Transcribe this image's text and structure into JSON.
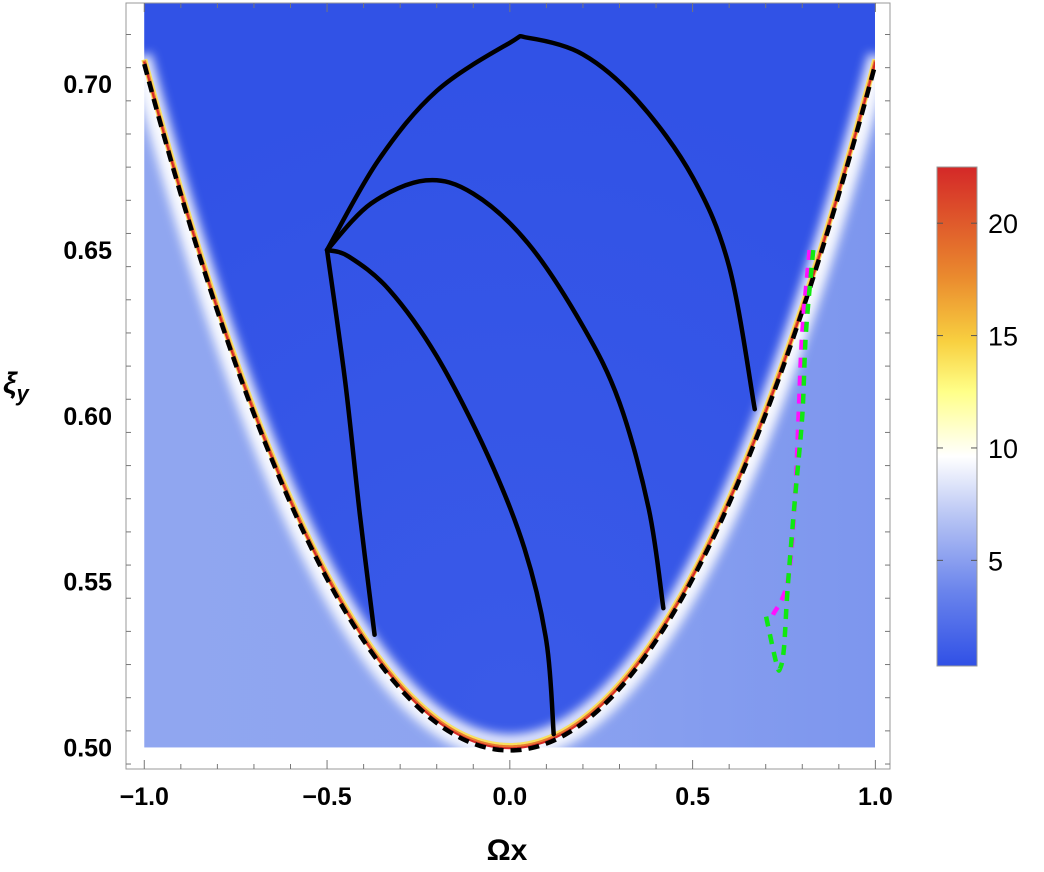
{
  "chart_data": {
    "type": "heatmap",
    "title": "",
    "xlabel": "Ωx",
    "ylabel_main": "ξ",
    "ylabel_sub": "y",
    "xlim": [
      -1.05,
      1.04
    ],
    "ylim": [
      0.4935,
      0.7245
    ],
    "data_extent": {
      "x": [
        -1.0,
        1.0
      ],
      "y": [
        0.5,
        0.725
      ]
    },
    "x_ticks": [
      {
        "value": -1.0,
        "label": "−1.0"
      },
      {
        "value": -0.5,
        "label": "−0.5"
      },
      {
        "value": 0.0,
        "label": "0.0"
      },
      {
        "value": 0.5,
        "label": "0.5"
      },
      {
        "value": 1.0,
        "label": "1.0"
      }
    ],
    "y_ticks": [
      {
        "value": 0.5,
        "label": "0.50"
      },
      {
        "value": 0.55,
        "label": "0.55"
      },
      {
        "value": 0.6,
        "label": "0.60"
      },
      {
        "value": 0.65,
        "label": "0.65"
      },
      {
        "value": 0.7,
        "label": "0.70"
      }
    ],
    "colorbar": {
      "range": [
        0.3,
        22.5
      ],
      "ticks": [
        {
          "value": 5,
          "label": "5"
        },
        {
          "value": 10,
          "label": "10"
        },
        {
          "value": 15,
          "label": "15"
        },
        {
          "value": 20,
          "label": "20"
        }
      ],
      "colors": [
        "#3050e6",
        "#5a78ea",
        "#9db0f0",
        "#ffffff",
        "#ffff55",
        "#f5b030",
        "#e86a2a",
        "#d42828"
      ]
    },
    "parabola": {
      "description": "boundary ξy = 0.5 + 0.207·Ωx²",
      "a": 0.207,
      "b": 0.5
    },
    "series": [
      {
        "name": "curve-1",
        "style": "solid",
        "color": "#000000",
        "points": [
          [
            -0.5,
            0.65
          ],
          [
            -0.36,
            0.677
          ],
          [
            -0.2,
            0.698
          ],
          [
            0.0,
            0.7125
          ],
          [
            0.05,
            0.714
          ],
          [
            0.2,
            0.709
          ],
          [
            0.35,
            0.695
          ],
          [
            0.5,
            0.672
          ],
          [
            0.6,
            0.645
          ],
          [
            0.67,
            0.602
          ]
        ]
      },
      {
        "name": "curve-2",
        "style": "solid",
        "color": "#000000",
        "points": [
          [
            -0.5,
            0.65
          ],
          [
            -0.38,
            0.664
          ],
          [
            -0.23,
            0.671
          ],
          [
            -0.1,
            0.667
          ],
          [
            0.05,
            0.652
          ],
          [
            0.2,
            0.627
          ],
          [
            0.3,
            0.604
          ],
          [
            0.38,
            0.572
          ],
          [
            0.42,
            0.542
          ]
        ]
      },
      {
        "name": "curve-3",
        "style": "solid",
        "color": "#000000",
        "points": [
          [
            -0.5,
            0.65
          ],
          [
            -0.44,
            0.648
          ],
          [
            -0.33,
            0.638
          ],
          [
            -0.2,
            0.618
          ],
          [
            -0.06,
            0.588
          ],
          [
            0.04,
            0.56
          ],
          [
            0.1,
            0.532
          ],
          [
            0.12,
            0.504
          ]
        ]
      },
      {
        "name": "curve-4",
        "style": "solid",
        "color": "#000000",
        "points": [
          [
            -0.5,
            0.65
          ],
          [
            -0.45,
            0.61
          ],
          [
            -0.41,
            0.57
          ],
          [
            -0.37,
            0.534
          ]
        ]
      },
      {
        "name": "magenta-dashed",
        "style": "dashed",
        "color": "#ff10ff",
        "points": [
          [
            0.82,
            0.65
          ],
          [
            0.8,
            0.625
          ],
          [
            0.79,
            0.6
          ],
          [
            0.78,
            0.575
          ],
          [
            0.76,
            0.55
          ],
          [
            0.72,
            0.54
          ]
        ]
      },
      {
        "name": "green-dashed",
        "style": "dashed",
        "color": "#10e810",
        "points": [
          [
            0.83,
            0.65
          ],
          [
            0.81,
            0.625
          ],
          [
            0.8,
            0.6
          ],
          [
            0.78,
            0.575
          ],
          [
            0.76,
            0.548
          ],
          [
            0.75,
            0.53
          ],
          [
            0.74,
            0.524
          ],
          [
            0.73,
            0.525
          ],
          [
            0.7,
            0.54
          ]
        ]
      }
    ]
  }
}
